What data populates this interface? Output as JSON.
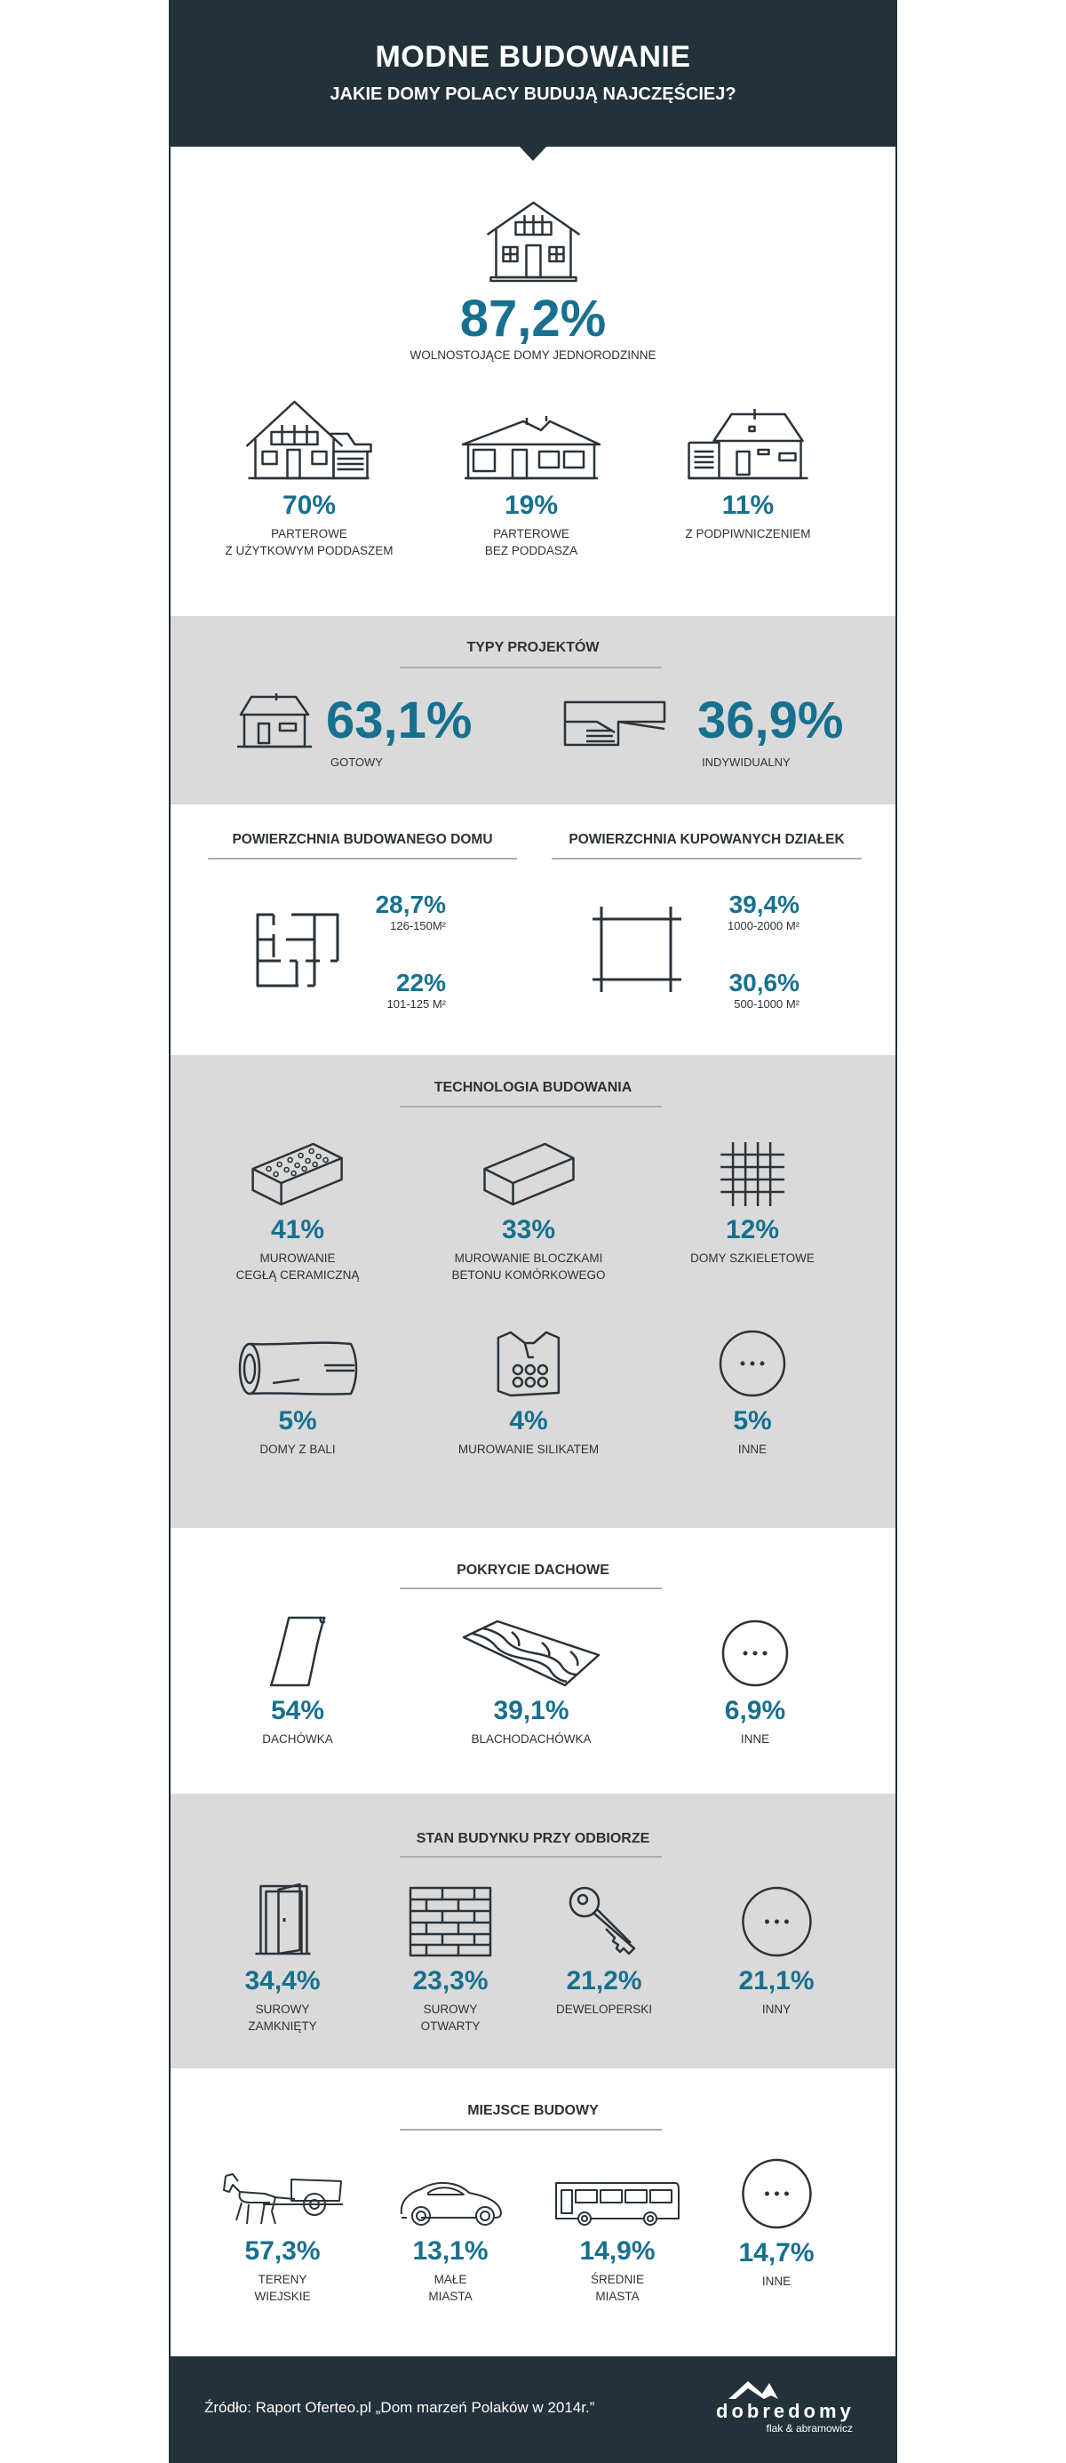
{
  "header": {
    "title": "MODNE BUDOWANIE",
    "subtitle": "JAKIE DOMY POLACY BUDUJĄ NAJCZĘŚCIEJ?"
  },
  "detached": {
    "icon": "house-icon",
    "value": "87,2%",
    "label": "WOLNOSTOJĄCE DOMY JEDNORODZINNE"
  },
  "house_types": [
    {
      "icon": "house-attic-icon",
      "value": "70%",
      "label": "PARTEROWE\nZ UŻYTKOWYM PODDASZEM"
    },
    {
      "icon": "bungalow-icon",
      "value": "19%",
      "label": "PARTEROWE\nBEZ PODDASZA"
    },
    {
      "icon": "house-basement-icon",
      "value": "11%",
      "label": "Z PODPIWNICZENIEM"
    }
  ],
  "project_types": {
    "title": "TYPY PROJEKTÓW",
    "items": [
      {
        "icon": "ready-house-icon",
        "value": "63,1%",
        "label": "GOTOWY"
      },
      {
        "icon": "modern-house-icon",
        "value": "36,9%",
        "label": "INDYWIDUALNY"
      }
    ]
  },
  "area": {
    "house": {
      "title": "POWIERZCHNIA BUDOWANEGO DOMU",
      "icon": "floor-plan-icon",
      "items": [
        {
          "value": "28,7%",
          "label": "126-150M²"
        },
        {
          "value": "22%",
          "label": "101-125 M²"
        }
      ]
    },
    "plot": {
      "title": "POWIERZCHNIA KUPOWANYCH DZIAŁEK",
      "icon": "plot-icon",
      "items": [
        {
          "value": "39,4%",
          "label": "1000-2000 M²"
        },
        {
          "value": "30,6%",
          "label": "500-1000 M²"
        }
      ]
    }
  },
  "technology": {
    "title": "TECHNOLOGIA BUDOWANIA",
    "items": [
      {
        "icon": "ceramic-brick-icon",
        "value": "41%",
        "label": "MUROWANIE\nCEGŁĄ CERAMICZNĄ"
      },
      {
        "icon": "concrete-block-icon",
        "value": "33%",
        "label": "MUROWANIE BLOCZKAMI\nBETONU KOMÓRKOWEGO"
      },
      {
        "icon": "frame-grid-icon",
        "value": "12%",
        "label": "DOMY SZKIELETOWE"
      },
      {
        "icon": "log-icon",
        "value": "5%",
        "label": "DOMY Z BALI"
      },
      {
        "icon": "silicate-block-icon",
        "value": "4%",
        "label": "MUROWANIE SILIKATEM"
      },
      {
        "icon": "more-icon",
        "value": "5%",
        "label": "INNE"
      }
    ]
  },
  "roofing": {
    "title": "POKRYCIE DACHOWE",
    "items": [
      {
        "icon": "roof-tile-icon",
        "value": "54%",
        "label": "DACHÓWKA"
      },
      {
        "icon": "metal-roof-tile-icon",
        "value": "39,1%",
        "label": "BLACHODACHÓWKA"
      },
      {
        "icon": "more-icon",
        "value": "6,9%",
        "label": "INNE"
      }
    ]
  },
  "condition": {
    "title": "STAN BUDYNKU PRZY ODBIORZE",
    "items": [
      {
        "icon": "door-icon",
        "value": "34,4%",
        "label": "SUROWY\nZAMKNIĘTY"
      },
      {
        "icon": "brick-wall-icon",
        "value": "23,3%",
        "label": "SUROWY\nOTWARTY"
      },
      {
        "icon": "key-icon",
        "value": "21,2%",
        "label": "DEWELOPERSKI"
      },
      {
        "icon": "more-icon",
        "value": "21,1%",
        "label": "INNY"
      }
    ]
  },
  "location": {
    "title": "MIEJSCE BUDOWY",
    "items": [
      {
        "icon": "horse-cart-icon",
        "value": "57,3%",
        "label": "TERENY\nWIEJSKIE"
      },
      {
        "icon": "car-icon",
        "value": "13,1%",
        "label": "MAŁE\nMIASTA"
      },
      {
        "icon": "bus-icon",
        "value": "14,9%",
        "label": "ŚREDNIE\nMIASTA"
      },
      {
        "icon": "more-icon",
        "value": "14,7%",
        "label": "INNE"
      }
    ]
  },
  "footer": {
    "source": "Źródło: Raport Oferteo.pl „Dom marzeń Polaków w 2014r.”",
    "logo": "dobredomy",
    "logo_sub": "flak & abramowicz"
  },
  "colors": {
    "dark": "#22313a",
    "accent": "#17708f",
    "gray": "#dadada"
  }
}
